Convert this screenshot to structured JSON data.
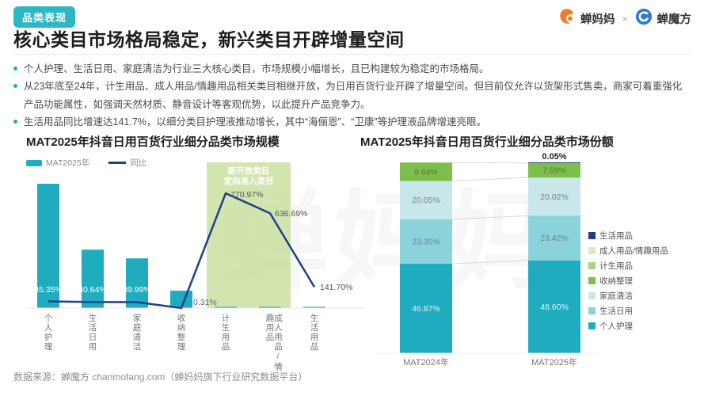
{
  "header": {
    "badge": "品类表现",
    "title": "核心类目市场格局稳定，新兴类目开辟增量空间",
    "brand_left": "蝉妈妈",
    "brand_sep": "×",
    "brand_right": "蝉魔方"
  },
  "bullets": [
    "个人护理、生活日用、家庭清洁为行业三大核心类目，市场规模小幅增长，且已构建较为稳定的市场格局。",
    "从23年底至24年，计生用品、成人用品/情趣用品相关类目相继开放，为日用百货行业开辟了增量空间。但目前仅允许以货架形式售卖，商家可着重强化产品功能属性，如强调天然材质、静音设计等客观优势，以此提升产品竞争力。",
    "生活用品同比增速达141.7%，以细分类目护理液推动增长，其中“海俪恩”、“卫康”等护理液品牌增速亮眼。"
  ],
  "footer": {
    "source": "数据来源：蝉魔方 chanmofang.com（蝉妈妈旗下行业研究数据平台）"
  },
  "watermark": "蝉妈妈",
  "colors": {
    "accent_teal": "#1FACBF",
    "badge_bg": "#2BB7C5",
    "line_navy": "#1E3F8F",
    "highlight_green": "#CDE1A3",
    "brand_orange": "#F47B20",
    "brand_blue": "#2E7BD2"
  },
  "chart_data": [
    {
      "type": "bar",
      "title": "MAT2025年抖音日用百货行业细分品类市场规模",
      "legend": [
        {
          "label": "MAT2025年",
          "swatch": "bar"
        },
        {
          "label": "同比",
          "swatch": "line"
        }
      ],
      "categories": [
        "个人护理",
        "生活日用",
        "家庭清洁",
        "收纳整理",
        "计生用品",
        "成人用品/情趣用品",
        "生活用品"
      ],
      "series": [
        {
          "name": "MAT2025年",
          "type": "bar",
          "unit": "relative-height(unlabeled)",
          "values": [
            100,
            47,
            40,
            14,
            1,
            1,
            1
          ]
        },
        {
          "name": "同比",
          "type": "line",
          "unit": "%",
          "values": [
            45.35,
            40.64,
            39.99,
            0.31,
            770.97,
            636.69,
            141.7
          ]
        }
      ],
      "annotation": {
        "line1": "新开放类目",
        "line2": "定向准入类目",
        "covers": [
          "计生用品",
          "成人用品/情趣用品"
        ]
      },
      "ylim_line_pct": [
        0,
        800
      ],
      "grid": false
    },
    {
      "type": "stacked-bar",
      "title": "MAT2025年抖音日用百货行业细分品类市场份额",
      "categories": [
        "MAT2024年",
        "MAT2025年"
      ],
      "unit": "%",
      "series": [
        {
          "name": "个人护理",
          "color": "#1FACBF",
          "values": [
            46.87,
            48.6
          ]
        },
        {
          "name": "生活日用",
          "color": "#8AD3DA",
          "values": [
            23.35,
            23.42
          ]
        },
        {
          "name": "家庭清洁",
          "color": "#C9E6EB",
          "values": [
            20.05,
            20.02
          ]
        },
        {
          "name": "收纳整理",
          "color": "#7CBF4A",
          "values": [
            9.64,
            7.59
          ]
        },
        {
          "name": "计生用品",
          "color": "#A6D381",
          "values": [
            0,
            0
          ]
        },
        {
          "name": "成人用品/情趣用品",
          "color": "#D8E9BB",
          "values": [
            0,
            0
          ]
        },
        {
          "name": "生活用品",
          "color": "#1F3F7E",
          "values": [
            0,
            0.05
          ]
        }
      ],
      "legend_order": [
        "生活用品",
        "成人用品/情趣用品",
        "计生用品",
        "收纳整理",
        "家庭清洁",
        "生活日用",
        "个人护理"
      ],
      "legend_position": "right",
      "ylim": [
        0,
        100
      ],
      "grid": false
    }
  ]
}
